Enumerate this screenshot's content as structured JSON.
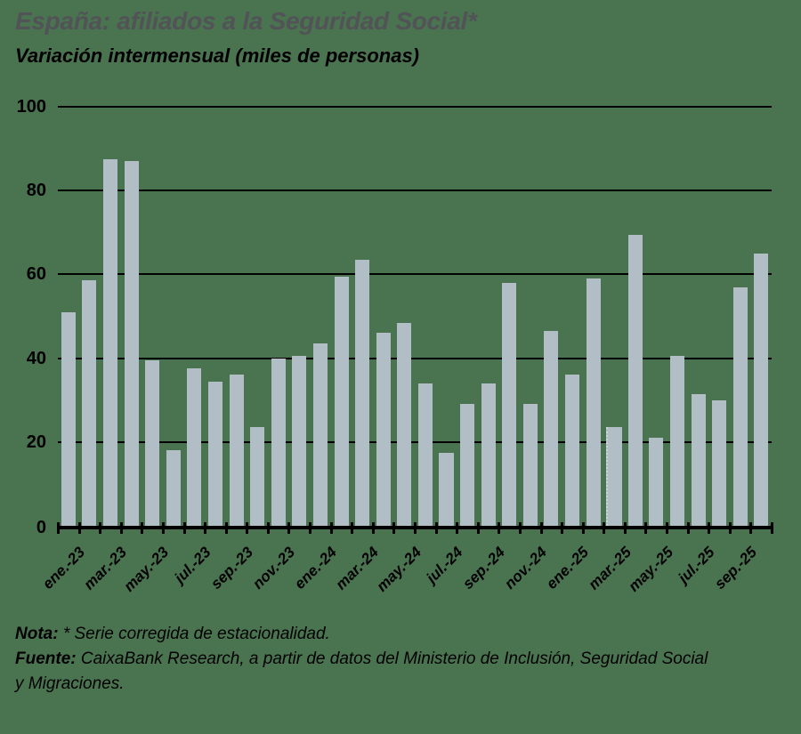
{
  "title": "España: afiliados a la Seguridad Social*",
  "subtitle": "Variación intermensual (miles de personas)",
  "footer": {
    "note_label": "Nota:",
    "note_text": " * Serie corregida de estacionalidad.",
    "source_label": "Fuente:",
    "source_text": " CaixaBank Research, a partir de datos del Ministerio de Inclusión, Seguridad Social",
    "source_text_line2": "y Migraciones."
  },
  "colors": {
    "background": "#4a7350",
    "bar": "#b2bec5",
    "title": "#525357",
    "axis": "#000000"
  },
  "chart_data": {
    "type": "bar",
    "title": "España: afiliados a la Seguridad Social*",
    "subtitle": "Variación intermensual (miles de personas)",
    "categories": [
      "ene.-23",
      "feb.-23",
      "mar.-23",
      "abr.-23",
      "may.-23",
      "jun.-23",
      "jul.-23",
      "ago.-23",
      "sep.-23",
      "oct.-23",
      "nov.-23",
      "dic.-23",
      "ene.-24",
      "feb.-24",
      "mar.-24",
      "abr.-24",
      "may.-24",
      "jun.-24",
      "jul.-24",
      "ago.-24",
      "sep.-24",
      "oct.-24",
      "nov.-24",
      "dic.-24",
      "ene.-25",
      "feb.-25",
      "mar.-25",
      "abr.-25",
      "may.-25",
      "jun.-25",
      "jul.-25",
      "ago.-25",
      "sep.-25",
      "oct.-25"
    ],
    "values": [
      51,
      58.5,
      87.5,
      87,
      39.5,
      18,
      37.5,
      34.5,
      36,
      23.5,
      40,
      40.5,
      43.5,
      59.5,
      63.5,
      46,
      48.5,
      34,
      17.5,
      29,
      34,
      58,
      29,
      46.5,
      36,
      59,
      23.5,
      69.5,
      21,
      40.5,
      31.5,
      30,
      57,
      65
    ],
    "x_tick_labels_shown": [
      "ene.-23",
      "mar.-23",
      "may.-23",
      "jul.-23",
      "sep.-23",
      "nov.-23",
      "ene.-24",
      "mar.-24",
      "may.-24",
      "jul.-24",
      "sep.-24",
      "nov.-24",
      "ene.-25",
      "mar.-25",
      "may.-25",
      "jul.-25",
      "sep.-25"
    ],
    "xlabel": "",
    "ylabel": "",
    "ylim": [
      0,
      100
    ],
    "y_ticks": [
      0,
      20,
      40,
      60,
      80,
      100
    ],
    "grid": "horizontal-behind-bars",
    "legend": "none",
    "bar_color": "#b2bec5",
    "dotted_left_edge_category": "mar.-25"
  }
}
